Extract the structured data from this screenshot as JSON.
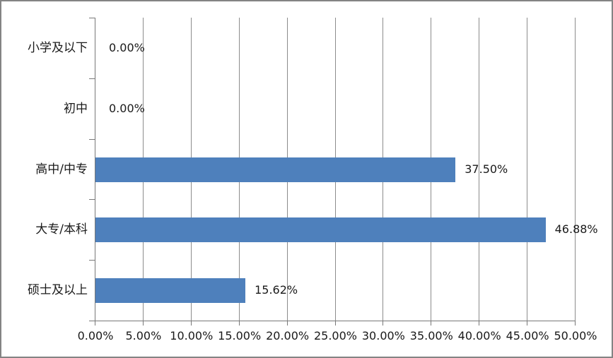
{
  "chart_data": {
    "type": "bar",
    "orientation": "horizontal",
    "title": "",
    "categories": [
      "小学及以下",
      "初中",
      "高中/中专",
      "大专/本科",
      "硕士及以上"
    ],
    "values": [
      0.0,
      0.0,
      37.5,
      46.88,
      15.62
    ],
    "data_labels": [
      "0.00%",
      "0.00%",
      "37.50%",
      "46.88%",
      "15.62%"
    ],
    "x_ticks": [
      "0.00%",
      "5.00%",
      "10.00%",
      "15.00%",
      "20.00%",
      "25.00%",
      "30.00%",
      "35.00%",
      "40.00%",
      "45.00%",
      "50.00%"
    ],
    "xlim": [
      0,
      50
    ],
    "x_tick_step": 5,
    "grid": true,
    "legend": false,
    "colors": {
      "bar": "#4E80BC",
      "gridline": "#8C8C8C",
      "axis": "#787878",
      "text": "#1a1a1a",
      "frame_border": "#848484",
      "background": "#ffffff"
    }
  }
}
